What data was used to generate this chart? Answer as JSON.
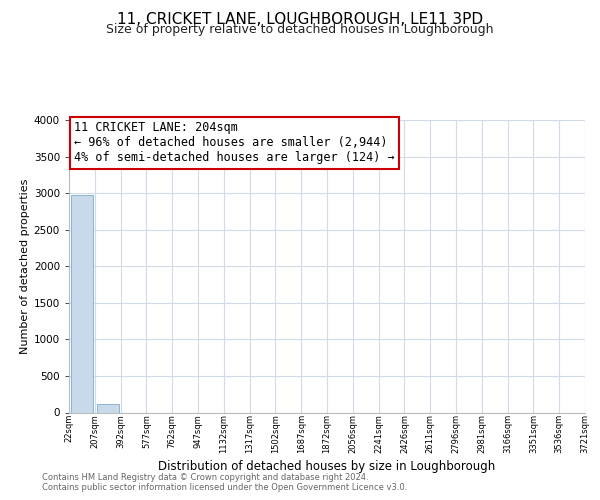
{
  "title": "11, CRICKET LANE, LOUGHBOROUGH, LE11 3PD",
  "subtitle": "Size of property relative to detached houses in Loughborough",
  "xlabel": "Distribution of detached houses by size in Loughborough",
  "ylabel": "Number of detached properties",
  "bin_labels": [
    "22sqm",
    "207sqm",
    "392sqm",
    "577sqm",
    "762sqm",
    "947sqm",
    "1132sqm",
    "1317sqm",
    "1502sqm",
    "1687sqm",
    "1872sqm",
    "2056sqm",
    "2241sqm",
    "2426sqm",
    "2611sqm",
    "2796sqm",
    "2981sqm",
    "3166sqm",
    "3351sqm",
    "3536sqm",
    "3721sqm"
  ],
  "bar_heights": [
    2980,
    120,
    0,
    0,
    0,
    0,
    0,
    0,
    0,
    0,
    0,
    0,
    0,
    0,
    0,
    0,
    0,
    0,
    0,
    0
  ],
  "bar_color": "#c8d9ec",
  "bar_edge_color": "#8ab4d4",
  "ylim": [
    0,
    4000
  ],
  "yticks": [
    0,
    500,
    1000,
    1500,
    2000,
    2500,
    3000,
    3500,
    4000
  ],
  "annotation_line1": "11 CRICKET LANE: 204sqm",
  "annotation_line2": "← 96% of detached houses are smaller (2,944)",
  "annotation_line3": "4% of semi-detached houses are larger (124) →",
  "annotation_box_color": "#ffffff",
  "annotation_box_edge": "#cc0000",
  "footer_line1": "Contains HM Land Registry data © Crown copyright and database right 2024.",
  "footer_line2": "Contains public sector information licensed under the Open Government Licence v3.0.",
  "grid_color": "#d0daea",
  "title_fontsize": 11,
  "subtitle_fontsize": 9,
  "annotation_fontsize": 8.5,
  "ylabel_fontsize": 8,
  "xlabel_fontsize": 8.5
}
